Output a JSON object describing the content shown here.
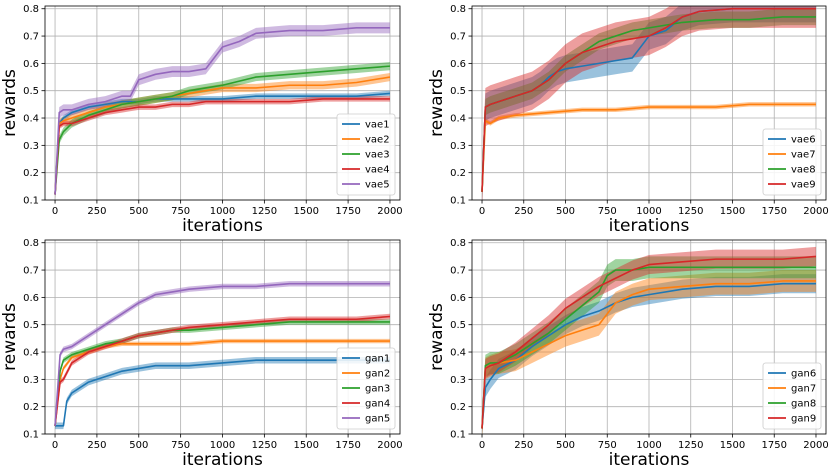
{
  "chart_data": [
    {
      "type": "line",
      "xlabel": "iterations",
      "ylabel": "rewards",
      "xlim": [
        -60,
        2060
      ],
      "ylim": [
        0.1,
        0.81
      ],
      "xticks": [
        0,
        250,
        500,
        750,
        1000,
        1250,
        1500,
        1750,
        2000
      ],
      "yticks": [
        0.1,
        0.2,
        0.3,
        0.4,
        0.5,
        0.6,
        0.7,
        0.8
      ],
      "legend_position": "bottom-right",
      "grid": true,
      "series": [
        {
          "name": "vae1",
          "color": "#1f77b4",
          "band": 0.01,
          "x": [
            0,
            25,
            50,
            100,
            200,
            300,
            400,
            500,
            600,
            700,
            800,
            900,
            1000,
            1200,
            1400,
            1600,
            1800,
            2000
          ],
          "y": [
            0.12,
            0.38,
            0.4,
            0.42,
            0.44,
            0.45,
            0.46,
            0.46,
            0.47,
            0.47,
            0.47,
            0.47,
            0.47,
            0.48,
            0.48,
            0.48,
            0.48,
            0.49
          ]
        },
        {
          "name": "vae2",
          "color": "#ff7f0e",
          "band": 0.015,
          "x": [
            0,
            25,
            50,
            100,
            200,
            300,
            400,
            500,
            600,
            700,
            800,
            900,
            1000,
            1200,
            1400,
            1600,
            1800,
            2000
          ],
          "y": [
            0.12,
            0.38,
            0.39,
            0.4,
            0.42,
            0.44,
            0.45,
            0.46,
            0.47,
            0.48,
            0.49,
            0.5,
            0.51,
            0.51,
            0.52,
            0.52,
            0.53,
            0.55
          ]
        },
        {
          "name": "vae3",
          "color": "#2ca02c",
          "band": 0.015,
          "x": [
            0,
            25,
            50,
            100,
            200,
            300,
            400,
            500,
            600,
            700,
            800,
            900,
            1000,
            1200,
            1400,
            1600,
            1800,
            2000
          ],
          "y": [
            0.12,
            0.32,
            0.35,
            0.38,
            0.41,
            0.43,
            0.45,
            0.46,
            0.47,
            0.48,
            0.5,
            0.51,
            0.52,
            0.55,
            0.56,
            0.57,
            0.58,
            0.59
          ]
        },
        {
          "name": "vae4",
          "color": "#d62728",
          "band": 0.01,
          "x": [
            0,
            25,
            50,
            100,
            200,
            300,
            400,
            500,
            600,
            700,
            800,
            900,
            1000,
            1200,
            1400,
            1600,
            1800,
            2000
          ],
          "y": [
            0.12,
            0.37,
            0.38,
            0.38,
            0.4,
            0.42,
            0.43,
            0.44,
            0.44,
            0.45,
            0.45,
            0.46,
            0.46,
            0.46,
            0.46,
            0.47,
            0.47,
            0.47
          ]
        },
        {
          "name": "vae5",
          "color": "#9467bd",
          "band": 0.02,
          "x": [
            0,
            25,
            50,
            100,
            200,
            300,
            400,
            450,
            500,
            600,
            700,
            800,
            900,
            1000,
            1100,
            1200,
            1400,
            1600,
            1800,
            2000
          ],
          "y": [
            0.12,
            0.42,
            0.43,
            0.43,
            0.45,
            0.46,
            0.48,
            0.48,
            0.54,
            0.56,
            0.57,
            0.57,
            0.58,
            0.66,
            0.68,
            0.71,
            0.72,
            0.72,
            0.73,
            0.73
          ]
        }
      ]
    },
    {
      "type": "line",
      "xlabel": "iterations",
      "ylabel": "rewards",
      "xlim": [
        -60,
        2060
      ],
      "ylim": [
        0.1,
        0.81
      ],
      "xticks": [
        0,
        250,
        500,
        750,
        1000,
        1250,
        1500,
        1750,
        2000
      ],
      "yticks": [
        0.1,
        0.2,
        0.3,
        0.4,
        0.5,
        0.6,
        0.7,
        0.8
      ],
      "legend_position": "bottom-right",
      "grid": true,
      "series": [
        {
          "name": "vae6",
          "color": "#1f77b4",
          "band": 0.05,
          "x": [
            0,
            20,
            50,
            100,
            200,
            300,
            350,
            400,
            450,
            500,
            600,
            700,
            800,
            900,
            1000,
            1100,
            1200,
            1300,
            1500,
            1700,
            2000
          ],
          "y": [
            0.13,
            0.44,
            0.45,
            0.46,
            0.48,
            0.5,
            0.52,
            0.55,
            0.57,
            0.58,
            0.59,
            0.6,
            0.61,
            0.62,
            0.7,
            0.72,
            0.77,
            0.79,
            0.8,
            0.8,
            0.8
          ]
        },
        {
          "name": "vae7",
          "color": "#ff7f0e",
          "band": 0.008,
          "x": [
            0,
            20,
            50,
            100,
            200,
            400,
            600,
            800,
            1000,
            1200,
            1400,
            1600,
            1800,
            2000
          ],
          "y": [
            0.13,
            0.39,
            0.38,
            0.4,
            0.41,
            0.42,
            0.43,
            0.43,
            0.44,
            0.44,
            0.44,
            0.45,
            0.45,
            0.45
          ]
        },
        {
          "name": "vae8",
          "color": "#2ca02c",
          "band": 0.03,
          "x": [
            0,
            20,
            50,
            100,
            200,
            300,
            400,
            450,
            500,
            600,
            700,
            800,
            900,
            1000,
            1100,
            1200,
            1400,
            1600,
            1800,
            2000
          ],
          "y": [
            0.13,
            0.44,
            0.45,
            0.46,
            0.48,
            0.5,
            0.54,
            0.57,
            0.6,
            0.64,
            0.68,
            0.7,
            0.72,
            0.73,
            0.74,
            0.75,
            0.76,
            0.76,
            0.77,
            0.77
          ]
        },
        {
          "name": "vae9",
          "color": "#d62728",
          "band": 0.07,
          "x": [
            0,
            20,
            50,
            100,
            200,
            300,
            400,
            450,
            500,
            600,
            700,
            800,
            900,
            1000,
            1100,
            1200,
            1300,
            1500,
            1700,
            2000
          ],
          "y": [
            0.13,
            0.44,
            0.45,
            0.46,
            0.48,
            0.5,
            0.54,
            0.57,
            0.6,
            0.64,
            0.66,
            0.68,
            0.69,
            0.7,
            0.73,
            0.77,
            0.79,
            0.8,
            0.8,
            0.8
          ]
        }
      ]
    },
    {
      "type": "line",
      "xlabel": "iterations",
      "ylabel": "rewards",
      "xlim": [
        -60,
        2060
      ],
      "ylim": [
        0.1,
        0.81
      ],
      "xticks": [
        0,
        250,
        500,
        750,
        1000,
        1250,
        1500,
        1750,
        2000
      ],
      "yticks": [
        0.1,
        0.2,
        0.3,
        0.4,
        0.5,
        0.6,
        0.7,
        0.8
      ],
      "legend_position": "bottom-right",
      "grid": true,
      "series": [
        {
          "name": "gan1",
          "color": "#1f77b4",
          "band": 0.012,
          "x": [
            0,
            50,
            70,
            100,
            200,
            300,
            400,
            500,
            600,
            700,
            800,
            1000,
            1200,
            1400,
            1600,
            1800,
            2000
          ],
          "y": [
            0.13,
            0.13,
            0.22,
            0.25,
            0.29,
            0.31,
            0.33,
            0.34,
            0.35,
            0.35,
            0.35,
            0.36,
            0.37,
            0.37,
            0.37,
            0.37,
            0.37
          ]
        },
        {
          "name": "gan2",
          "color": "#ff7f0e",
          "band": 0.008,
          "x": [
            0,
            30,
            50,
            100,
            200,
            300,
            400,
            500,
            600,
            800,
            1000,
            1200,
            1400,
            1600,
            1800,
            2000
          ],
          "y": [
            0.13,
            0.3,
            0.34,
            0.38,
            0.4,
            0.42,
            0.43,
            0.43,
            0.43,
            0.43,
            0.44,
            0.44,
            0.44,
            0.44,
            0.44,
            0.44
          ]
        },
        {
          "name": "gan3",
          "color": "#2ca02c",
          "band": 0.01,
          "x": [
            0,
            30,
            50,
            100,
            200,
            300,
            400,
            500,
            600,
            700,
            800,
            1000,
            1200,
            1400,
            1600,
            1800,
            2000
          ],
          "y": [
            0.13,
            0.33,
            0.37,
            0.39,
            0.41,
            0.43,
            0.44,
            0.46,
            0.47,
            0.48,
            0.48,
            0.49,
            0.5,
            0.51,
            0.51,
            0.51,
            0.51
          ]
        },
        {
          "name": "gan4",
          "color": "#d62728",
          "band": 0.01,
          "x": [
            0,
            30,
            50,
            100,
            200,
            300,
            400,
            500,
            600,
            700,
            800,
            1000,
            1200,
            1400,
            1600,
            1800,
            2000
          ],
          "y": [
            0.13,
            0.29,
            0.3,
            0.36,
            0.4,
            0.42,
            0.44,
            0.46,
            0.47,
            0.48,
            0.49,
            0.5,
            0.51,
            0.52,
            0.52,
            0.52,
            0.53
          ]
        },
        {
          "name": "gan5",
          "color": "#9467bd",
          "band": 0.01,
          "x": [
            0,
            30,
            50,
            100,
            200,
            300,
            400,
            500,
            600,
            700,
            800,
            1000,
            1200,
            1400,
            1600,
            1800,
            2000
          ],
          "y": [
            0.13,
            0.39,
            0.41,
            0.42,
            0.46,
            0.5,
            0.54,
            0.58,
            0.61,
            0.62,
            0.63,
            0.64,
            0.64,
            0.65,
            0.65,
            0.65,
            0.65
          ]
        }
      ]
    },
    {
      "type": "line",
      "xlabel": "iterations",
      "ylabel": "rewards",
      "xlim": [
        -60,
        2060
      ],
      "ylim": [
        0.1,
        0.81
      ],
      "xticks": [
        0,
        250,
        500,
        750,
        1000,
        1250,
        1500,
        1750,
        2000
      ],
      "yticks": [
        0.1,
        0.2,
        0.3,
        0.4,
        0.5,
        0.6,
        0.7,
        0.8
      ],
      "legend_position": "bottom-right",
      "grid": true,
      "series": [
        {
          "name": "gan6",
          "color": "#1f77b4",
          "band": 0.035,
          "x": [
            0,
            20,
            50,
            100,
            200,
            300,
            400,
            500,
            600,
            700,
            800,
            900,
            1000,
            1200,
            1400,
            1600,
            1800,
            2000
          ],
          "y": [
            0.12,
            0.27,
            0.3,
            0.34,
            0.37,
            0.42,
            0.46,
            0.5,
            0.53,
            0.55,
            0.58,
            0.6,
            0.61,
            0.63,
            0.64,
            0.64,
            0.65,
            0.65
          ]
        },
        {
          "name": "gan7",
          "color": "#ff7f0e",
          "band": 0.04,
          "x": [
            0,
            20,
            50,
            100,
            200,
            300,
            400,
            500,
            600,
            700,
            800,
            900,
            1000,
            1200,
            1400,
            1600,
            1800,
            2000
          ],
          "y": [
            0.12,
            0.34,
            0.35,
            0.36,
            0.37,
            0.4,
            0.43,
            0.46,
            0.48,
            0.5,
            0.58,
            0.61,
            0.63,
            0.64,
            0.65,
            0.65,
            0.66,
            0.66
          ]
        },
        {
          "name": "gan8",
          "color": "#2ca02c",
          "band": 0.04,
          "x": [
            0,
            20,
            50,
            100,
            200,
            300,
            400,
            500,
            600,
            700,
            750,
            800,
            900,
            1000,
            1200,
            1400,
            1600,
            1800,
            2000
          ],
          "y": [
            0.12,
            0.35,
            0.36,
            0.36,
            0.39,
            0.43,
            0.47,
            0.52,
            0.57,
            0.62,
            0.68,
            0.7,
            0.7,
            0.71,
            0.71,
            0.71,
            0.71,
            0.71,
            0.71
          ]
        },
        {
          "name": "gan9",
          "color": "#d62728",
          "band": 0.035,
          "x": [
            0,
            20,
            50,
            100,
            200,
            300,
            400,
            500,
            600,
            700,
            800,
            900,
            1000,
            1200,
            1400,
            1600,
            1800,
            2000
          ],
          "y": [
            0.12,
            0.34,
            0.35,
            0.36,
            0.4,
            0.45,
            0.5,
            0.56,
            0.6,
            0.64,
            0.67,
            0.7,
            0.72,
            0.73,
            0.74,
            0.74,
            0.74,
            0.75
          ]
        }
      ]
    }
  ]
}
